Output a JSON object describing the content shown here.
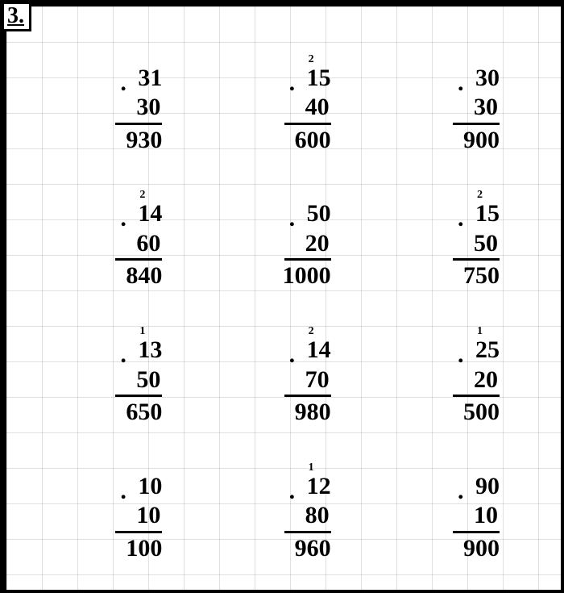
{
  "label": "3.",
  "layout": {
    "rows": 4,
    "cols": 3
  },
  "colors": {
    "ink": "#000000",
    "paper": "#ffffff",
    "grid": "rgba(0,0,0,0.12)"
  },
  "font": {
    "family": "Times New Roman",
    "size_main_pt": 30,
    "size_carry_pt": 14,
    "weight": "bold"
  },
  "problems": [
    {
      "multiplicand": "31",
      "multiplier": "30",
      "product": "930",
      "carry": null,
      "carry_pos": 0
    },
    {
      "multiplicand": "15",
      "multiplier": "40",
      "product": "600",
      "carry": "2",
      "carry_pos": 0
    },
    {
      "multiplicand": "30",
      "multiplier": "30",
      "product": "900",
      "carry": null,
      "carry_pos": 0
    },
    {
      "multiplicand": "14",
      "multiplier": "60",
      "product": "840",
      "carry": "2",
      "carry_pos": 0
    },
    {
      "multiplicand": "50",
      "multiplier": "20",
      "product": "1000",
      "carry": null,
      "carry_pos": 0
    },
    {
      "multiplicand": "15",
      "multiplier": "50",
      "product": "750",
      "carry": "2",
      "carry_pos": 0
    },
    {
      "multiplicand": "13",
      "multiplier": "50",
      "product": "650",
      "carry": "1",
      "carry_pos": 0
    },
    {
      "multiplicand": "14",
      "multiplier": "70",
      "product": "980",
      "carry": "2",
      "carry_pos": 0
    },
    {
      "multiplicand": "25",
      "multiplier": "20",
      "product": "500",
      "carry": "1",
      "carry_pos": 0
    },
    {
      "multiplicand": "10",
      "multiplier": "10",
      "product": "100",
      "carry": null,
      "carry_pos": 0
    },
    {
      "multiplicand": "12",
      "multiplier": "80",
      "product": "960",
      "carry": "1",
      "carry_pos": 0
    },
    {
      "multiplicand": "90",
      "multiplier": "10",
      "product": "900",
      "carry": null,
      "carry_pos": 0
    }
  ]
}
